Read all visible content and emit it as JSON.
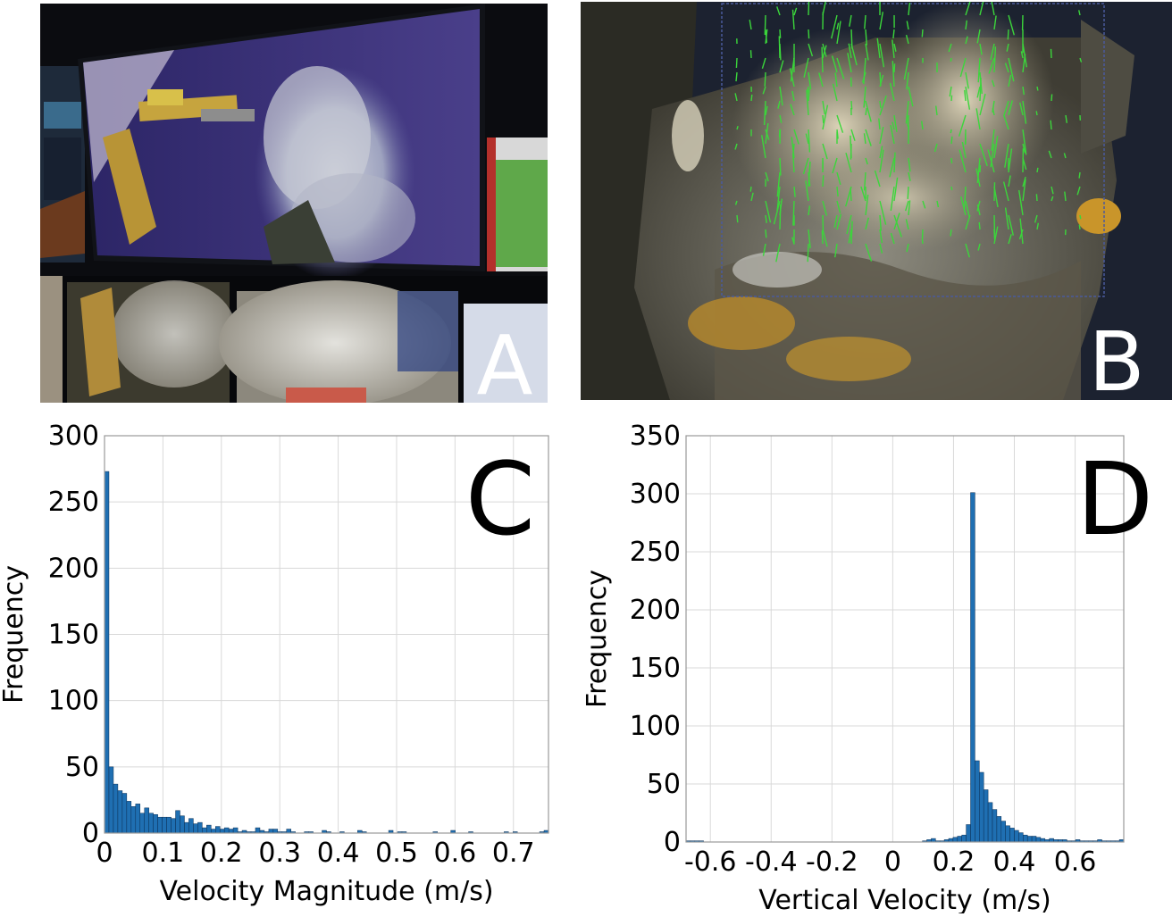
{
  "panels": {
    "a": {
      "letter": "A"
    },
    "b": {
      "letter": "B"
    }
  },
  "colors": {
    "bar": "#1f6fb2",
    "bar_edge": "#0b2f55",
    "grid": "#d9d9d9",
    "axis": "#999999"
  },
  "chart_data": [
    {
      "type": "bar",
      "letter": "C",
      "xlabel": "Velocity Magnitude (m/s)",
      "ylabel": "Frequency",
      "xlim": [
        0,
        0.76
      ],
      "ylim": [
        0,
        300
      ],
      "xticks": [
        0,
        0.1,
        0.2,
        0.3,
        0.4,
        0.5,
        0.6,
        0.7
      ],
      "xtick_labels": [
        "0",
        "0.1",
        "0.2",
        "0.3",
        "0.4",
        "0.5",
        "0.6",
        "0.7"
      ],
      "yticks": [
        0,
        50,
        100,
        150,
        200,
        250,
        300
      ],
      "grid": true,
      "bin_width": 0.0076,
      "bins_start": 0,
      "values": [
        273,
        50,
        37,
        32,
        30,
        24,
        20,
        22,
        15,
        19,
        15,
        14,
        12,
        12,
        12,
        11,
        17,
        13,
        8,
        11,
        7,
        8,
        4,
        6,
        3,
        5,
        3,
        4,
        3,
        4,
        1,
        2,
        1,
        1,
        4,
        2,
        1,
        3,
        3,
        1,
        1,
        3,
        1,
        0,
        0,
        1,
        1,
        0,
        0,
        2,
        1,
        0,
        0,
        1,
        0,
        0,
        0,
        2,
        1,
        0,
        0,
        0,
        0,
        0,
        2,
        0,
        1,
        1,
        0,
        0,
        0,
        0,
        0,
        0,
        1,
        0,
        0,
        0,
        2,
        0,
        0,
        0,
        1,
        0,
        0,
        0,
        0,
        0,
        0,
        0,
        1,
        0,
        1,
        0,
        0,
        0,
        0,
        0,
        1,
        2
      ]
    },
    {
      "type": "bar",
      "letter": "D",
      "xlabel": "Vertical Velocity (m/s)",
      "ylabel": "Frequency",
      "xlim": [
        -0.68,
        0.76
      ],
      "ylim": [
        0,
        350
      ],
      "xticks": [
        -0.6,
        -0.4,
        -0.2,
        0,
        0.2,
        0.4,
        0.6
      ],
      "xtick_labels": [
        "-0.6",
        "-0.4",
        "-0.2",
        "0",
        "0.2",
        "0.4",
        "0.6"
      ],
      "yticks": [
        0,
        50,
        100,
        150,
        200,
        250,
        300,
        350
      ],
      "grid": true,
      "bin_width": 0.0144,
      "bins_start": -0.68,
      "values": [
        1,
        1,
        1,
        1,
        0,
        0,
        0,
        0,
        0,
        0,
        0,
        0,
        0,
        0,
        0,
        0,
        0,
        0,
        0,
        0,
        0,
        0,
        0,
        0,
        0,
        0,
        0,
        0,
        0,
        0,
        0,
        0,
        0,
        0,
        0,
        0,
        0,
        0,
        0,
        0,
        0,
        0,
        0,
        0,
        0,
        0,
        0,
        0,
        0,
        0,
        0,
        0,
        0,
        0,
        1,
        2,
        3,
        1,
        1,
        2,
        3,
        4,
        5,
        6,
        15,
        301,
        70,
        60,
        45,
        34,
        28,
        22,
        18,
        14,
        12,
        10,
        8,
        6,
        5,
        5,
        4,
        3,
        2,
        3,
        2,
        2,
        2,
        1,
        1,
        2,
        1,
        1,
        1,
        1,
        2,
        1,
        1,
        1,
        1,
        2
      ]
    }
  ]
}
